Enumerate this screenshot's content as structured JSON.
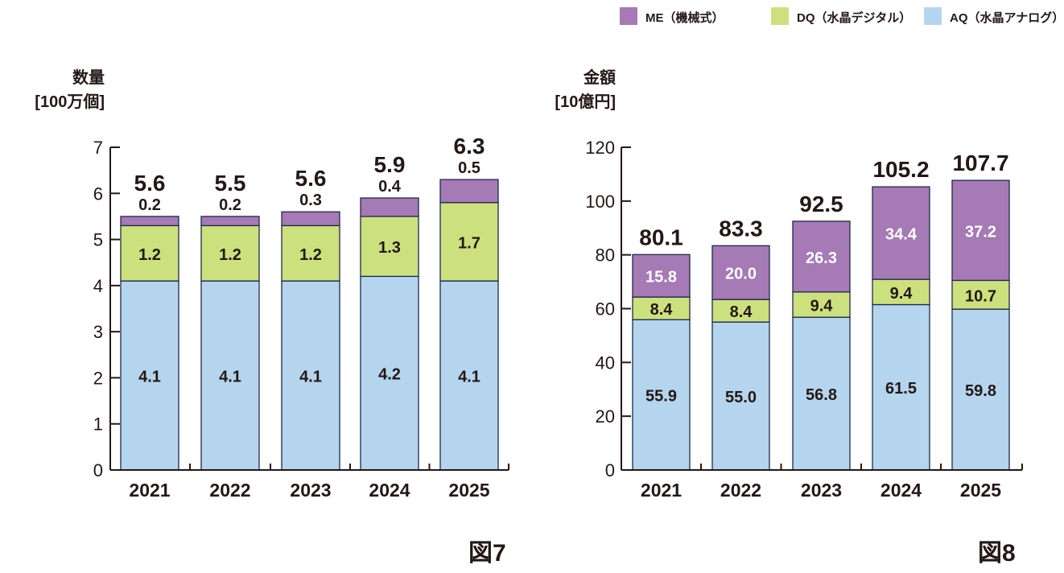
{
  "legend": [
    {
      "label": "ME（機械式）",
      "color": "#a57ab5"
    },
    {
      "label": "DQ（水晶デジタル）",
      "color": "#cde07e"
    },
    {
      "label": "AQ（水晶アナログ）",
      "color": "#b5d5ef"
    }
  ],
  "chart_data": [
    {
      "type": "bar",
      "stacked": true,
      "title": "図7",
      "ylabel_line1": "数量",
      "ylabel_line2": "[100万個]",
      "categories": [
        "2021",
        "2022",
        "2023",
        "2024",
        "2025"
      ],
      "ylim": [
        0,
        7
      ],
      "yticks": [
        "0",
        "1",
        "2",
        "3",
        "4",
        "5",
        "6",
        "7"
      ],
      "series": [
        {
          "name": "AQ（水晶アナログ）",
          "values": [
            "4.1",
            "4.1",
            "4.1",
            "4.2",
            "4.1"
          ]
        },
        {
          "name": "DQ（水晶デジタル）",
          "values": [
            "1.2",
            "1.2",
            "1.2",
            "1.3",
            "1.7"
          ]
        },
        {
          "name": "ME（機械式）",
          "values": [
            "0.2",
            "0.2",
            "0.3",
            "0.4",
            "0.5"
          ]
        }
      ],
      "totals": [
        "5.6",
        "5.5",
        "5.6",
        "5.9",
        "6.3"
      ],
      "me_label_position": "above"
    },
    {
      "type": "bar",
      "stacked": true,
      "title": "図8",
      "ylabel_line1": "金額",
      "ylabel_line2": "[10億円]",
      "categories": [
        "2021",
        "2022",
        "2023",
        "2024",
        "2025"
      ],
      "ylim": [
        0,
        120
      ],
      "yticks": [
        "0",
        "20",
        "40",
        "60",
        "80",
        "100",
        "120"
      ],
      "series": [
        {
          "name": "AQ（水晶アナログ）",
          "values": [
            "55.9",
            "55.0",
            "56.8",
            "61.5",
            "59.8"
          ]
        },
        {
          "name": "DQ（水晶デジタル）",
          "values": [
            "8.4",
            "8.4",
            "9.4",
            "9.4",
            "10.7"
          ]
        },
        {
          "name": "ME（機械式）",
          "values": [
            "15.8",
            "20.0",
            "26.3",
            "34.4",
            "37.2"
          ]
        }
      ],
      "totals": [
        "80.1",
        "83.3",
        "92.5",
        "105.2",
        "107.7"
      ],
      "me_label_position": "inside"
    }
  ]
}
